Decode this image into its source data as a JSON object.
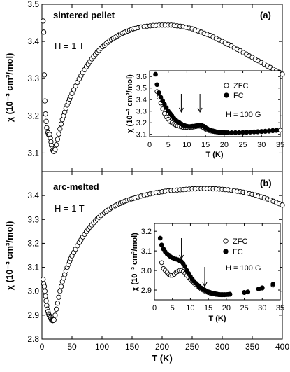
{
  "chart_data": [
    {
      "type": "scatter",
      "panel_label": "(a)",
      "sample_label": "sintered pellet",
      "field_label": "H = 1 T",
      "ylabel": "χ (10⁻³ cm³/mol)",
      "xlim": [
        0,
        400
      ],
      "ylim": [
        3.05,
        3.5
      ],
      "yticks": [
        3.1,
        3.2,
        3.3,
        3.4,
        3.5
      ],
      "ytick_labels": [
        "3.1",
        "3.2",
        "3.3",
        "3.4",
        "3.5"
      ],
      "series": [
        {
          "marker": "open",
          "x": [
            2,
            3,
            4,
            5,
            6,
            7,
            8,
            9,
            10,
            11,
            12,
            13,
            14,
            15,
            16,
            17,
            18,
            19,
            20,
            22,
            24,
            26,
            28,
            30,
            32,
            34,
            36,
            38,
            40,
            42,
            44,
            46,
            48,
            50,
            53,
            56,
            59,
            62,
            65,
            68,
            71,
            74,
            77,
            80,
            83,
            86,
            89,
            92,
            95,
            98,
            101,
            104,
            107,
            110,
            113,
            116,
            119,
            122,
            125,
            128,
            131,
            134,
            137,
            140,
            143,
            146,
            149,
            152,
            155,
            160,
            165,
            170,
            175,
            180,
            185,
            190,
            195,
            200,
            205,
            210,
            215,
            220,
            225,
            230,
            235,
            240,
            245,
            250,
            255,
            260,
            265,
            270,
            275,
            280,
            285,
            290,
            295,
            300,
            305,
            310,
            315,
            320,
            325,
            330,
            335,
            340,
            345,
            350,
            355,
            360,
            365,
            370,
            375,
            380,
            385,
            390,
            395,
            400
          ],
          "y": [
            3.455,
            3.425,
            3.31,
            3.24,
            3.205,
            3.185,
            3.168,
            3.158,
            3.155,
            3.15,
            3.148,
            3.15,
            3.14,
            3.13,
            3.12,
            3.112,
            3.108,
            3.105,
            3.104,
            3.11,
            3.122,
            3.137,
            3.151,
            3.165,
            3.178,
            3.19,
            3.2,
            3.21,
            3.22,
            3.229,
            3.237,
            3.245,
            3.252,
            3.26,
            3.27,
            3.28,
            3.29,
            3.299,
            3.308,
            3.316,
            3.324,
            3.332,
            3.339,
            3.346,
            3.353,
            3.359,
            3.365,
            3.371,
            3.376,
            3.381,
            3.386,
            3.39,
            3.394,
            3.398,
            3.402,
            3.405,
            3.408,
            3.411,
            3.414,
            3.417,
            3.42,
            3.422,
            3.424,
            3.426,
            3.428,
            3.43,
            3.432,
            3.434,
            3.435,
            3.437,
            3.439,
            3.44,
            3.441,
            3.442,
            3.443,
            3.443,
            3.444,
            3.444,
            3.444,
            3.444,
            3.444,
            3.443,
            3.442,
            3.441,
            3.44,
            3.438,
            3.436,
            3.434,
            3.431,
            3.428,
            3.425,
            3.422,
            3.419,
            3.416,
            3.412,
            3.408,
            3.404,
            3.4,
            3.396,
            3.392,
            3.388,
            3.383,
            3.379,
            3.375,
            3.37,
            3.366,
            3.361,
            3.357,
            3.352,
            3.348,
            3.343,
            3.339,
            3.334,
            3.33,
            3.325,
            3.321,
            3.317,
            3.312
          ]
        }
      ],
      "inset": {
        "field_label": "H = 100 G",
        "xlabel": "T (K)",
        "ylabel": "χ (10⁻³ cm³/mol)",
        "xlim": [
          0,
          35
        ],
        "ylim": [
          3.08,
          3.65
        ],
        "xticks": [
          0,
          5,
          10,
          15,
          20,
          25,
          30,
          35
        ],
        "xtick_labels": [
          "0",
          "5",
          "10",
          "15",
          "20",
          "25",
          "30",
          "35"
        ],
        "yticks": [
          3.1,
          3.2,
          3.3,
          3.4,
          3.5,
          3.6
        ],
        "ytick_labels": [
          "3.1",
          "3.2",
          "3.3",
          "3.4",
          "3.5",
          "3.6"
        ],
        "arrows_at_T": [
          8.5,
          13.5
        ],
        "series": [
          {
            "name": "ZFC",
            "marker": "open",
            "x": [
              2,
              2.5,
              3,
              3.5,
              4,
              4.5,
              5,
              5.5,
              6,
              6.5,
              7,
              7.5,
              8,
              8.5,
              9,
              9.5,
              10,
              10.5,
              11,
              11.5,
              12,
              12.5,
              13,
              13.5,
              14,
              14.5,
              15,
              15.5,
              16,
              16.5,
              17,
              17.5,
              18,
              18.5,
              19,
              19.5,
              20,
              20.5,
              21,
              22,
              23,
              24,
              25,
              26,
              27,
              28,
              29,
              30,
              31,
              32,
              33,
              34,
              35
            ],
            "y": [
              3.47,
              3.42,
              3.37,
              3.32,
              3.28,
              3.25,
              3.23,
              3.21,
              3.2,
              3.19,
              3.18,
              3.175,
              3.17,
              3.165,
              3.16,
              3.16,
              3.16,
              3.158,
              3.16,
              3.162,
              3.165,
              3.168,
              3.17,
              3.17,
              3.165,
              3.155,
              3.145,
              3.138,
              3.132,
              3.128,
              3.125,
              3.122,
              3.12,
              3.118,
              3.116,
              3.115,
              3.114,
              3.114,
              3.113,
              3.113,
              3.114,
              3.115,
              3.116,
              3.117,
              3.119,
              3.12,
              3.121,
              3.123,
              3.125,
              3.127,
              3.13,
              3.133,
              3.136
            ]
          },
          {
            "name": "FC",
            "marker": "filled",
            "x": [
              1.6,
              2,
              2.5,
              3,
              3.5,
              4,
              4.5,
              5,
              5.5,
              6,
              6.5,
              7,
              7.5,
              8,
              8.5,
              9,
              9.5,
              10,
              10.5,
              11,
              11.5,
              12,
              12.5,
              13,
              13.5,
              14,
              14.5,
              15,
              15.5,
              16,
              16.5,
              17,
              17.5,
              18,
              18.5,
              19,
              19.5,
              20,
              20.5,
              21,
              22,
              23,
              24,
              25,
              26,
              27,
              28,
              29,
              30,
              31,
              32,
              33,
              34
            ],
            "y": [
              3.62,
              3.53,
              3.46,
              3.42,
              3.39,
              3.36,
              3.33,
              3.3,
              3.28,
              3.26,
              3.24,
              3.225,
              3.21,
              3.2,
              3.19,
              3.18,
              3.175,
              3.17,
              3.168,
              3.168,
              3.17,
              3.172,
              3.175,
              3.178,
              3.18,
              3.178,
              3.17,
              3.158,
              3.148,
              3.14,
              3.135,
              3.13,
              3.126,
              3.122,
              3.119,
              3.117,
              3.116,
              3.115,
              3.114,
              3.114,
              3.114,
              3.115,
              3.116,
              3.117,
              3.119,
              3.12,
              3.122,
              3.124,
              3.126,
              3.128,
              3.131,
              3.134,
              3.137
            ]
          }
        ]
      }
    },
    {
      "type": "scatter",
      "panel_label": "(b)",
      "sample_label": "arc-melted",
      "field_label": "H = 1 T",
      "xlabel": "T (K)",
      "ylabel": "χ (10⁻³ cm³/mol)",
      "xlim": [
        0,
        400
      ],
      "ylim": [
        2.8,
        3.5
      ],
      "xticks": [
        0,
        50,
        100,
        150,
        200,
        250,
        300,
        350,
        400
      ],
      "xtick_labels": [
        "0",
        "50",
        "100",
        "150",
        "200",
        "250",
        "300",
        "350",
        "400"
      ],
      "yticks": [
        2.8,
        2.9,
        3.0,
        3.1,
        3.2,
        3.3,
        3.4
      ],
      "ytick_labels": [
        "2.8",
        "2.9",
        "3.0",
        "3.1",
        "3.2",
        "3.3",
        "3.4"
      ],
      "series": [
        {
          "marker": "open",
          "x": [
            2,
            3,
            4,
            5,
            6,
            7,
            8,
            9,
            10,
            11,
            12,
            13,
            14,
            15,
            16,
            17,
            18,
            19,
            20,
            22,
            24,
            26,
            28,
            30,
            32,
            34,
            36,
            38,
            40,
            42,
            44,
            46,
            48,
            50,
            53,
            56,
            59,
            62,
            65,
            68,
            71,
            74,
            77,
            80,
            83,
            86,
            89,
            92,
            95,
            98,
            101,
            104,
            107,
            110,
            113,
            116,
            119,
            122,
            125,
            128,
            131,
            134,
            137,
            140,
            143,
            146,
            149,
            152,
            155,
            160,
            165,
            170,
            175,
            180,
            185,
            190,
            195,
            200,
            205,
            210,
            215,
            220,
            225,
            230,
            235,
            240,
            245,
            250,
            255,
            260,
            265,
            270,
            275,
            280,
            285,
            290,
            295,
            300,
            305,
            310,
            315,
            320,
            325,
            330,
            335,
            340,
            345,
            350,
            355,
            360,
            365,
            370,
            375,
            380,
            385,
            390,
            395,
            400
          ],
          "y": [
            3.05,
            3.03,
            3.02,
            3.0,
            2.98,
            2.96,
            2.94,
            2.925,
            2.915,
            2.905,
            2.9,
            2.895,
            2.89,
            2.885,
            2.88,
            2.878,
            2.877,
            2.878,
            2.88,
            2.9,
            2.925,
            2.95,
            2.975,
            3.0,
            3.02,
            3.04,
            3.055,
            3.07,
            3.085,
            3.1,
            3.112,
            3.125,
            3.137,
            3.148,
            3.162,
            3.176,
            3.19,
            3.203,
            3.215,
            3.227,
            3.238,
            3.249,
            3.259,
            3.268,
            3.277,
            3.286,
            3.294,
            3.302,
            3.309,
            3.316,
            3.322,
            3.328,
            3.334,
            3.339,
            3.344,
            3.349,
            3.353,
            3.357,
            3.361,
            3.365,
            3.368,
            3.372,
            3.375,
            3.378,
            3.381,
            3.383,
            3.386,
            3.388,
            3.39,
            3.394,
            3.398,
            3.401,
            3.404,
            3.407,
            3.41,
            3.412,
            3.414,
            3.416,
            3.418,
            3.42,
            3.421,
            3.422,
            3.423,
            3.424,
            3.425,
            3.426,
            3.427,
            3.428,
            3.428,
            3.429,
            3.429,
            3.429,
            3.429,
            3.429,
            3.428,
            3.428,
            3.427,
            3.426,
            3.425,
            3.424,
            3.422,
            3.42,
            3.418,
            3.416,
            3.414,
            3.411,
            3.408,
            3.405,
            3.402,
            3.398,
            3.394,
            3.39,
            3.386,
            3.381,
            3.376,
            3.371,
            3.366,
            3.36
          ]
        }
      ],
      "inset": {
        "field_label": "H = 100 G",
        "xlabel": "T (K)",
        "ylabel": "χ (10⁻³ cm³/mol)",
        "xlim": [
          0,
          35
        ],
        "ylim": [
          2.85,
          3.24
        ],
        "xticks": [
          0,
          5,
          10,
          15,
          20,
          25,
          30,
          35
        ],
        "xtick_labels": [
          "0",
          "5",
          "10",
          "15",
          "20",
          "25",
          "30",
          "35"
        ],
        "yticks": [
          2.9,
          3.0,
          3.1,
          3.2
        ],
        "ytick_labels": [
          "2.9",
          "3.0",
          "3.1",
          "3.2"
        ],
        "arrows_at_T": [
          7.5,
          14
        ],
        "series": [
          {
            "name": "ZFC",
            "marker": "open",
            "x": [
              2,
              2.5,
              3,
              3.5,
              4,
              4.5,
              5,
              5.5,
              6,
              6.5,
              7,
              7.5,
              8,
              8.5,
              9,
              9.5,
              10,
              10.5,
              11,
              11.5,
              12,
              12.5,
              13,
              13.5,
              14,
              14.5,
              15,
              15.5,
              16,
              16.5,
              17,
              17.5,
              18,
              18.5,
              19,
              19.5,
              20,
              20.5,
              21,
              25,
              26,
              29,
              30,
              33
            ],
            "y": [
              3.04,
              3.01,
              3.0,
              2.99,
              2.98,
              2.975,
              2.975,
              2.98,
              2.99,
              2.995,
              3.0,
              3.0,
              2.995,
              2.985,
              2.975,
              2.965,
              2.955,
              2.945,
              2.935,
              2.927,
              2.92,
              2.912,
              2.905,
              2.9,
              2.895,
              2.89,
              2.887,
              2.884,
              2.882,
              2.88,
              2.878,
              2.877,
              2.876,
              2.876,
              2.876,
              2.876,
              2.877,
              2.877,
              2.878,
              2.887,
              2.89,
              2.905,
              2.91,
              2.925
            ]
          },
          {
            "name": "FC",
            "marker": "filled",
            "x": [
              1.6,
              2,
              2.5,
              3,
              3.5,
              4,
              4.5,
              5,
              5.5,
              6,
              6.5,
              7,
              7.5,
              8,
              8.5,
              9,
              9.5,
              10,
              10.5,
              11,
              11.5,
              12,
              12.5,
              13,
              13.5,
              14,
              14.5,
              15,
              15.5,
              16,
              16.5,
              17,
              17.5,
              18,
              18.5,
              19,
              19.5,
              20,
              20.5,
              21,
              25,
              26,
              29,
              30,
              33
            ],
            "y": [
              3.165,
              3.13,
              3.11,
              3.095,
              3.085,
              3.078,
              3.07,
              3.065,
              3.06,
              3.058,
              3.055,
              3.05,
              3.045,
              3.035,
              3.02,
              3.0,
              2.985,
              2.97,
              2.957,
              2.945,
              2.935,
              2.926,
              2.918,
              2.911,
              2.905,
              2.9,
              2.895,
              2.891,
              2.888,
              2.885,
              2.883,
              2.881,
              2.879,
              2.878,
              2.877,
              2.877,
              2.877,
              2.877,
              2.878,
              2.879,
              2.888,
              2.891,
              2.906,
              2.912,
              2.93
            ]
          }
        ]
      }
    }
  ]
}
